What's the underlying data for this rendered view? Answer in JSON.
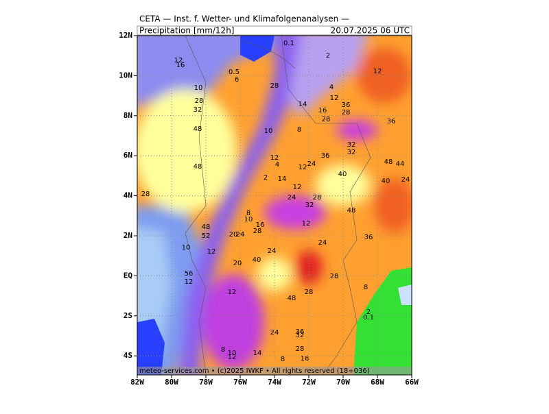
{
  "header": {
    "title": "CETA — Inst. f. Wetter- und Klimafolgenanalysen —",
    "product": "Precipitation [mm/12h]",
    "datetime": "20.07.2025 06 UTC"
  },
  "map": {
    "lon_ticks": [
      "82W",
      "80W",
      "78W",
      "76W",
      "74W",
      "72W",
      "70W",
      "68W",
      "66W"
    ],
    "lat_ticks": [
      "12N",
      "10N",
      "8N",
      "6N",
      "4N",
      "2N",
      "EQ",
      "2S",
      "4S"
    ]
  },
  "contour_labels": [
    "12",
    "16",
    "0.5",
    "6",
    "10",
    "28",
    "32",
    "48",
    "48",
    "28",
    "14",
    "16",
    "28",
    "36",
    "28",
    "36",
    "12",
    "4",
    "12",
    "2",
    "0.1",
    "10",
    "8",
    "12",
    "4",
    "12",
    "24",
    "36",
    "40",
    "32",
    "32",
    "48",
    "44",
    "40",
    "24",
    "2",
    "14",
    "12",
    "24",
    "28",
    "32",
    "48",
    "8",
    "10",
    "16",
    "28",
    "12",
    "36",
    "24",
    "24",
    "40",
    "52",
    "48",
    "20",
    "12",
    "10",
    "20",
    "12",
    "28",
    "8",
    "28",
    "48",
    "2",
    "0.1",
    "24",
    "36",
    "32",
    "28",
    "16",
    "14",
    "8",
    "10",
    "12",
    "8",
    "28",
    "12",
    "56",
    "24"
  ],
  "footer": "meteo-services.com • (c)2025 IWKF • All rights reserved (18+036)"
}
